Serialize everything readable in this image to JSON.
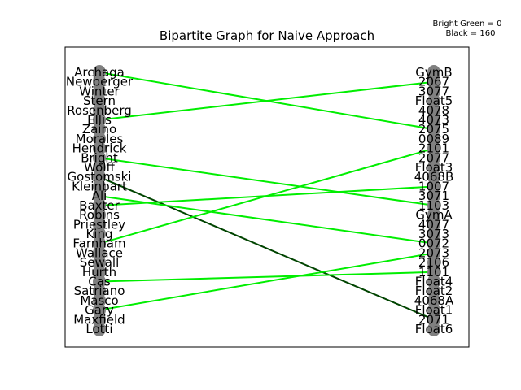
{
  "chart_data": {
    "type": "bipartite-graph",
    "title": "Bipartite Graph for Naive Approach",
    "legend_lines": [
      "Bright Green = 0",
      "Black = 160"
    ],
    "legend_placement": "top-right",
    "grid": false,
    "colors": {
      "bright_green": "#00ee00",
      "black": "#004400",
      "node": "#808080"
    },
    "left_nodes": [
      "Archaga",
      "Newberger",
      "Winter",
      "Stern",
      "Rosenberg",
      "Ellis",
      "Zaino",
      "Morales",
      "Hendrick",
      "Bright",
      "Wolff",
      "Gostomski",
      "Kleinbart",
      "Ali",
      "Baxter",
      "Robins",
      "Priestley",
      "King",
      "Farnham",
      "Wallace",
      "Sewall",
      "Hurth",
      "Cas",
      "Satriano",
      "Masco",
      "Gary",
      "Maxfield",
      "Lotti"
    ],
    "right_nodes": [
      "GymB",
      "2067",
      "3077",
      "Float5",
      "4078",
      "4073",
      "2075",
      "0089",
      "2101",
      "2077",
      "Float3",
      "4068B",
      "1007",
      "3071",
      "1103",
      "GymA",
      "4077",
      "3073",
      "0072",
      "2073",
      "2106",
      "1101",
      "Float4",
      "Float2",
      "4068A",
      "Float1",
      "2071",
      "Float6"
    ],
    "edges": [
      {
        "from": "Archaga",
        "to": "2075",
        "color": "bright_green"
      },
      {
        "from": "Ellis",
        "to": "2067",
        "color": "bright_green"
      },
      {
        "from": "Bright",
        "to": "1103",
        "color": "bright_green"
      },
      {
        "from": "Gostomski",
        "to": "2071",
        "color": "black"
      },
      {
        "from": "Baxter",
        "to": "1007",
        "color": "bright_green"
      },
      {
        "from": "Ali",
        "to": "0072",
        "color": "bright_green"
      },
      {
        "from": "Farnham",
        "to": "2101",
        "color": "bright_green"
      },
      {
        "from": "Cas",
        "to": "1101",
        "color": "bright_green"
      },
      {
        "from": "Gary",
        "to": "2073",
        "color": "bright_green"
      }
    ]
  }
}
